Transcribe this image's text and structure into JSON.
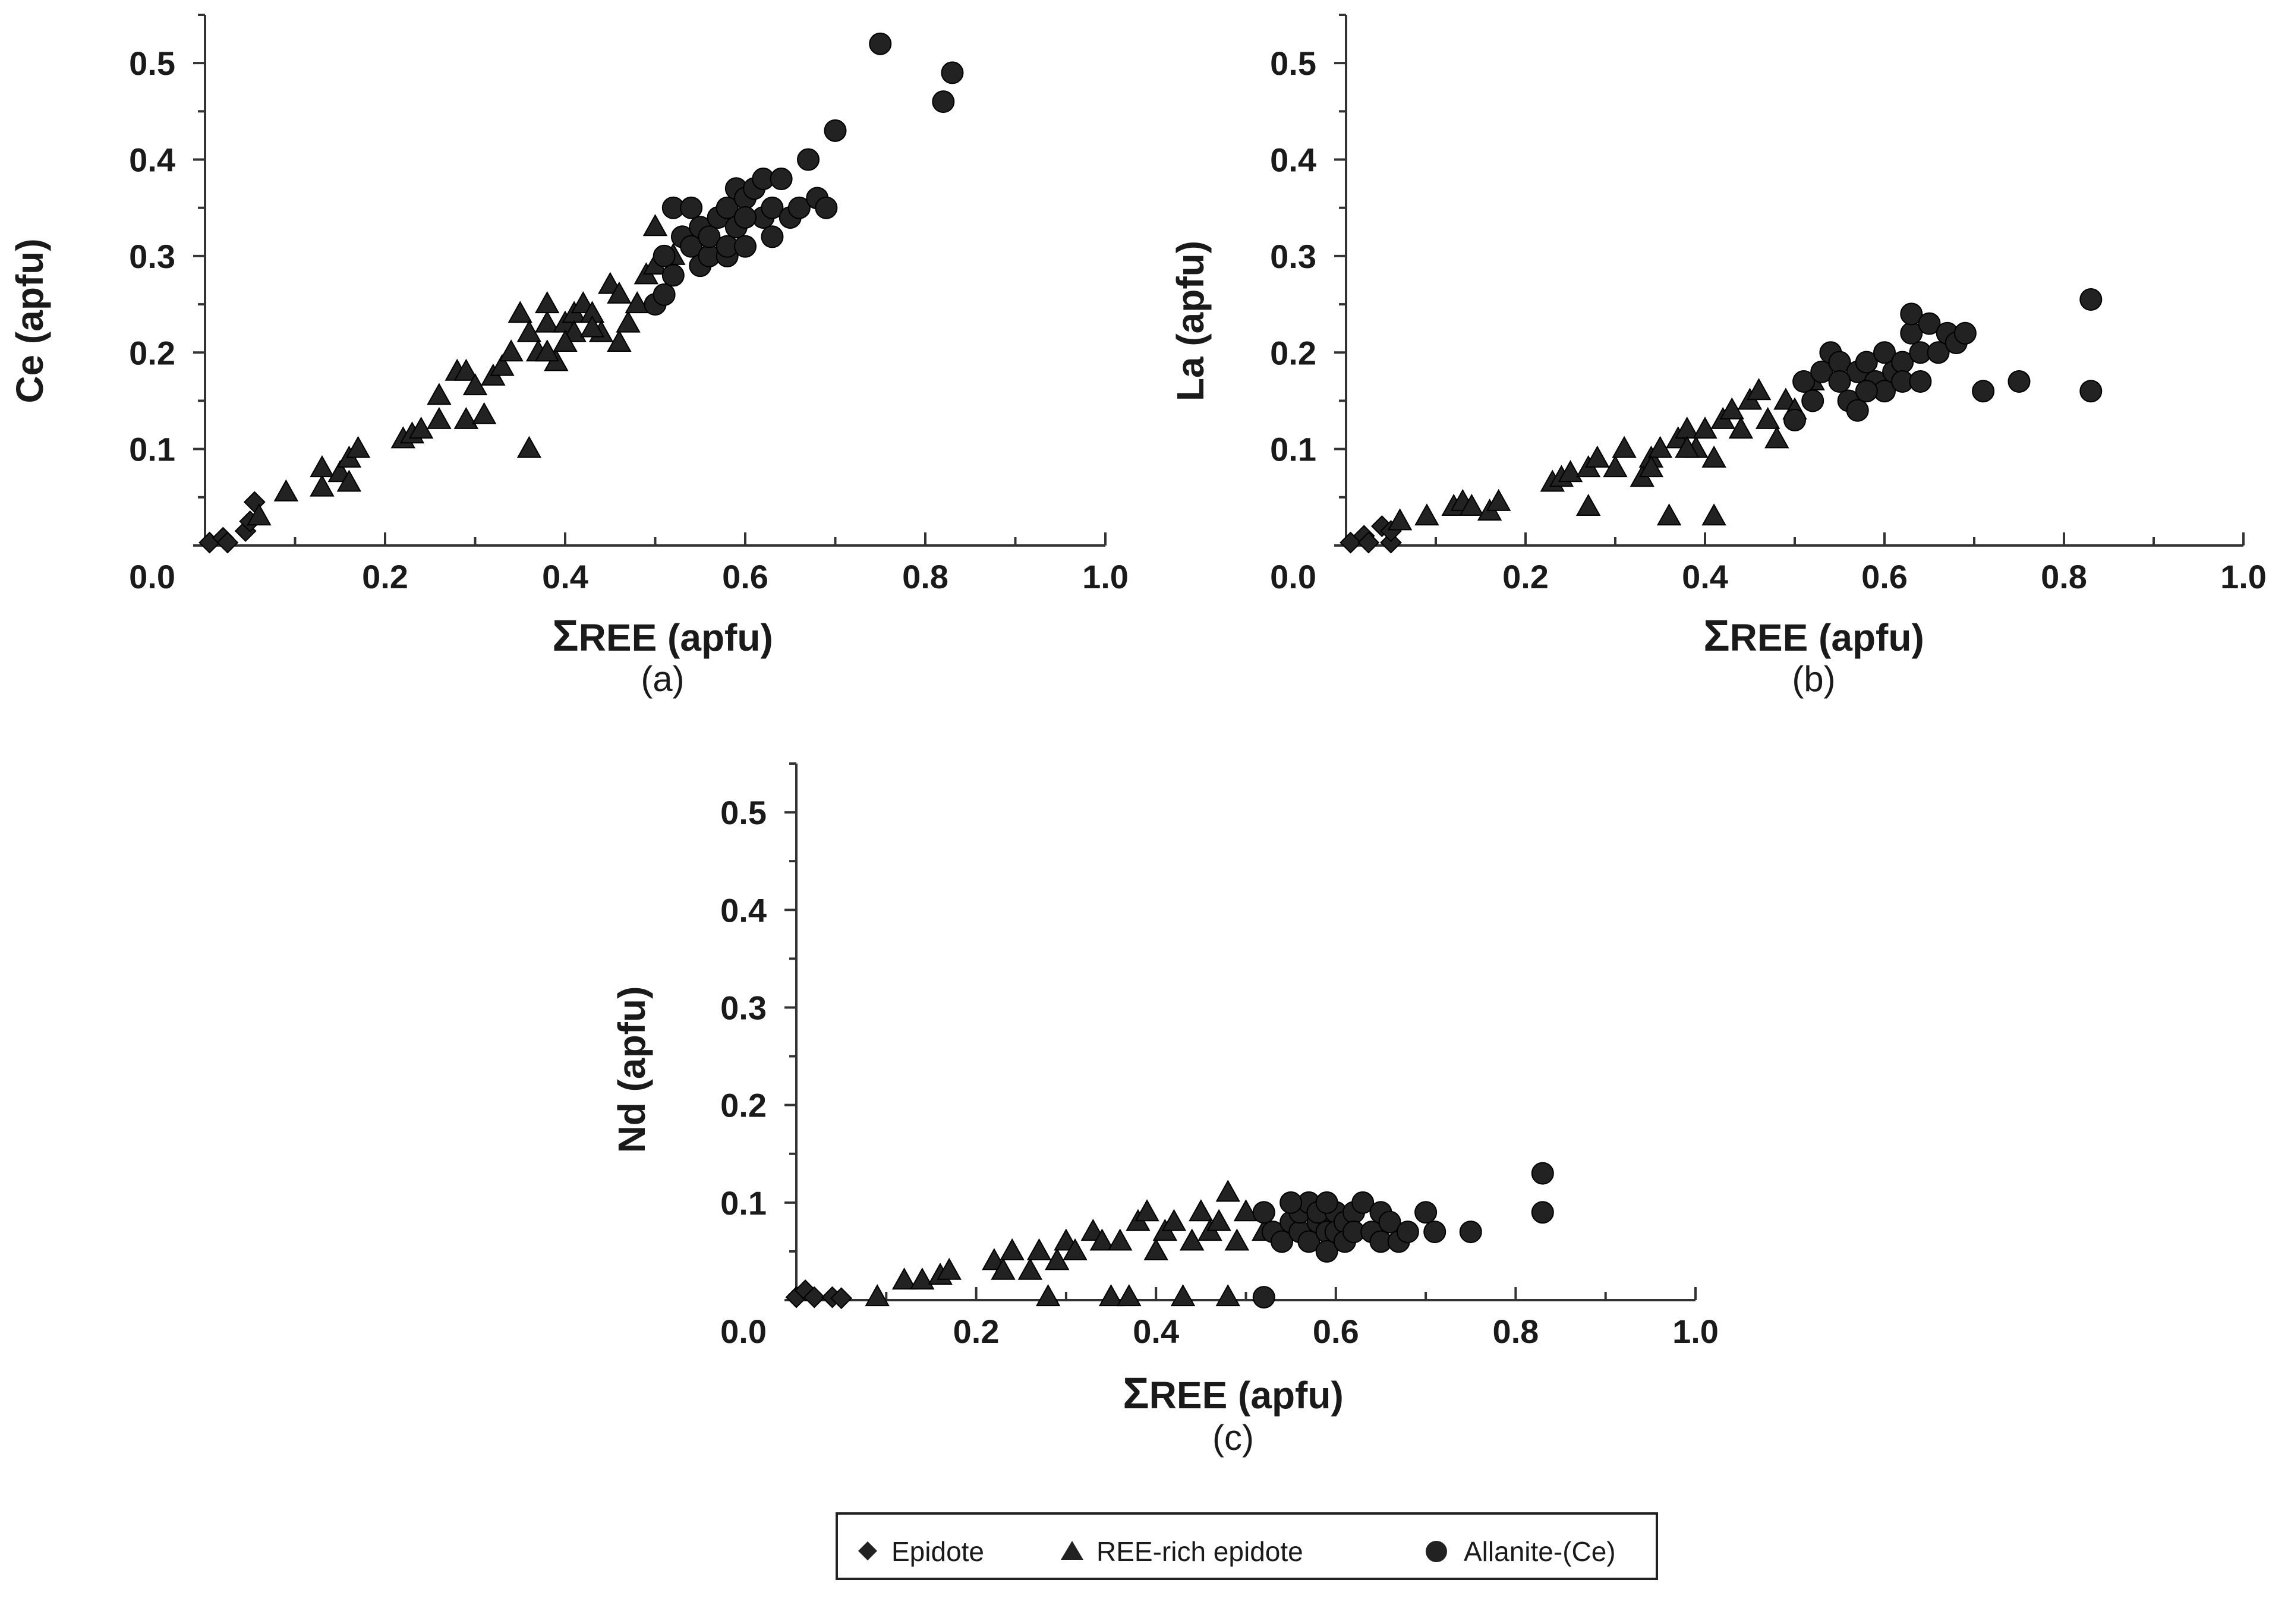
{
  "figure_legend": {
    "items": [
      {
        "label": "Epidote",
        "marker": "diamond"
      },
      {
        "label": "REE-rich epidote",
        "marker": "triangle"
      },
      {
        "label": "Allanite-(Ce)",
        "marker": "circle"
      }
    ]
  },
  "colors": {
    "marker": "#222222",
    "axis": "#333333",
    "text": "#1a1a1a"
  },
  "chart_data": [
    {
      "type": "scatter",
      "panel_label": "(a)",
      "ylabel": "Ce (apfu)",
      "xlabel_symbol": "Σ",
      "xlabel_text": "REE (apfu)",
      "xlim": [
        0,
        1.0
      ],
      "ylim": [
        0,
        0.55
      ],
      "xticks": [
        "0.0",
        "0.2",
        "0.4",
        "0.6",
        "0.8",
        "1.0"
      ],
      "yticks": [
        "0.1",
        "0.2",
        "0.3",
        "0.4",
        "0.5"
      ],
      "series": [
        {
          "name": "Epidote",
          "marker": "diamond",
          "points": [
            [
              0.005,
              0.003
            ],
            [
              0.02,
              0.008
            ],
            [
              0.025,
              0.003
            ],
            [
              0.045,
              0.015
            ],
            [
              0.05,
              0.025
            ],
            [
              0.055,
              0.045
            ]
          ]
        },
        {
          "name": "REE-rich epidote",
          "marker": "triangle",
          "points": [
            [
              0.06,
              0.03
            ],
            [
              0.09,
              0.055
            ],
            [
              0.13,
              0.06
            ],
            [
              0.13,
              0.08
            ],
            [
              0.15,
              0.075
            ],
            [
              0.16,
              0.065
            ],
            [
              0.16,
              0.09
            ],
            [
              0.17,
              0.1
            ],
            [
              0.22,
              0.11
            ],
            [
              0.23,
              0.115
            ],
            [
              0.24,
              0.12
            ],
            [
              0.26,
              0.13
            ],
            [
              0.26,
              0.155
            ],
            [
              0.28,
              0.18
            ],
            [
              0.29,
              0.18
            ],
            [
              0.29,
              0.13
            ],
            [
              0.31,
              0.135
            ],
            [
              0.3,
              0.165
            ],
            [
              0.32,
              0.175
            ],
            [
              0.33,
              0.185
            ],
            [
              0.34,
              0.2
            ],
            [
              0.35,
              0.24
            ],
            [
              0.36,
              0.22
            ],
            [
              0.36,
              0.1
            ],
            [
              0.37,
              0.2
            ],
            [
              0.38,
              0.23
            ],
            [
              0.39,
              0.19
            ],
            [
              0.38,
              0.2
            ],
            [
              0.4,
              0.23
            ],
            [
              0.41,
              0.24
            ],
            [
              0.41,
              0.22
            ],
            [
              0.42,
              0.25
            ],
            [
              0.43,
              0.24
            ],
            [
              0.44,
              0.22
            ],
            [
              0.45,
              0.27
            ],
            [
              0.46,
              0.26
            ],
            [
              0.46,
              0.21
            ],
            [
              0.47,
              0.23
            ],
            [
              0.48,
              0.25
            ],
            [
              0.49,
              0.28
            ],
            [
              0.5,
              0.29
            ],
            [
              0.5,
              0.33
            ],
            [
              0.52,
              0.3
            ],
            [
              0.38,
              0.25
            ],
            [
              0.43,
              0.225
            ],
            [
              0.4,
              0.21
            ]
          ]
        },
        {
          "name": "Allanite-(Ce)",
          "marker": "circle",
          "points": [
            [
              0.5,
              0.25
            ],
            [
              0.51,
              0.26
            ],
            [
              0.51,
              0.3
            ],
            [
              0.52,
              0.28
            ],
            [
              0.52,
              0.35
            ],
            [
              0.53,
              0.32
            ],
            [
              0.54,
              0.31
            ],
            [
              0.55,
              0.33
            ],
            [
              0.55,
              0.29
            ],
            [
              0.56,
              0.3
            ],
            [
              0.56,
              0.32
            ],
            [
              0.57,
              0.34
            ],
            [
              0.58,
              0.3
            ],
            [
              0.58,
              0.31
            ],
            [
              0.58,
              0.35
            ],
            [
              0.59,
              0.33
            ],
            [
              0.59,
              0.37
            ],
            [
              0.6,
              0.36
            ],
            [
              0.6,
              0.31
            ],
            [
              0.61,
              0.37
            ],
            [
              0.62,
              0.38
            ],
            [
              0.62,
              0.34
            ],
            [
              0.63,
              0.32
            ],
            [
              0.63,
              0.35
            ],
            [
              0.64,
              0.38
            ],
            [
              0.65,
              0.34
            ],
            [
              0.66,
              0.35
            ],
            [
              0.67,
              0.4
            ],
            [
              0.68,
              0.36
            ],
            [
              0.69,
              0.35
            ],
            [
              0.7,
              0.43
            ],
            [
              0.75,
              0.52
            ],
            [
              0.82,
              0.46
            ],
            [
              0.83,
              0.49
            ],
            [
              0.54,
              0.35
            ],
            [
              0.6,
              0.34
            ]
          ]
        }
      ]
    },
    {
      "type": "scatter",
      "panel_label": "(b)",
      "ylabel": "La (apfu)",
      "xlabel_symbol": "Σ",
      "xlabel_text": "REE (apfu)",
      "xlim": [
        0,
        1.0
      ],
      "ylim": [
        0,
        0.55
      ],
      "xticks": [
        "0.0",
        "0.2",
        "0.4",
        "0.6",
        "0.8",
        "1.0"
      ],
      "yticks": [
        "0.1",
        "0.2",
        "0.3",
        "0.4",
        "0.5"
      ],
      "series": [
        {
          "name": "Epidote",
          "marker": "diamond",
          "points": [
            [
              0.005,
              0.003
            ],
            [
              0.02,
              0.01
            ],
            [
              0.025,
              0.003
            ],
            [
              0.04,
              0.02
            ],
            [
              0.05,
              0.003
            ],
            [
              0.05,
              0.015
            ]
          ]
        },
        {
          "name": "REE-rich epidote",
          "marker": "triangle",
          "points": [
            [
              0.06,
              0.025
            ],
            [
              0.09,
              0.03
            ],
            [
              0.12,
              0.04
            ],
            [
              0.13,
              0.045
            ],
            [
              0.14,
              0.04
            ],
            [
              0.16,
              0.035
            ],
            [
              0.17,
              0.045
            ],
            [
              0.23,
              0.065
            ],
            [
              0.24,
              0.07
            ],
            [
              0.25,
              0.075
            ],
            [
              0.27,
              0.08
            ],
            [
              0.27,
              0.04
            ],
            [
              0.28,
              0.09
            ],
            [
              0.3,
              0.08
            ],
            [
              0.31,
              0.1
            ],
            [
              0.33,
              0.07
            ],
            [
              0.34,
              0.09
            ],
            [
              0.35,
              0.1
            ],
            [
              0.36,
              0.03
            ],
            [
              0.37,
              0.11
            ],
            [
              0.38,
              0.12
            ],
            [
              0.39,
              0.1
            ],
            [
              0.4,
              0.12
            ],
            [
              0.41,
              0.03
            ],
            [
              0.41,
              0.09
            ],
            [
              0.42,
              0.13
            ],
            [
              0.43,
              0.14
            ],
            [
              0.44,
              0.12
            ],
            [
              0.45,
              0.15
            ],
            [
              0.46,
              0.16
            ],
            [
              0.47,
              0.13
            ],
            [
              0.48,
              0.11
            ],
            [
              0.49,
              0.15
            ],
            [
              0.5,
              0.14
            ],
            [
              0.38,
              0.1
            ],
            [
              0.34,
              0.08
            ],
            [
              0.52,
              0.17
            ]
          ]
        },
        {
          "name": "Allanite-(Ce)",
          "marker": "circle",
          "points": [
            [
              0.5,
              0.13
            ],
            [
              0.51,
              0.17
            ],
            [
              0.52,
              0.15
            ],
            [
              0.53,
              0.18
            ],
            [
              0.54,
              0.2
            ],
            [
              0.55,
              0.19
            ],
            [
              0.56,
              0.15
            ],
            [
              0.57,
              0.14
            ],
            [
              0.57,
              0.18
            ],
            [
              0.58,
              0.19
            ],
            [
              0.59,
              0.17
            ],
            [
              0.6,
              0.2
            ],
            [
              0.6,
              0.16
            ],
            [
              0.61,
              0.18
            ],
            [
              0.62,
              0.19
            ],
            [
              0.62,
              0.17
            ],
            [
              0.63,
              0.22
            ],
            [
              0.63,
              0.24
            ],
            [
              0.64,
              0.2
            ],
            [
              0.64,
              0.17
            ],
            [
              0.65,
              0.23
            ],
            [
              0.66,
              0.2
            ],
            [
              0.67,
              0.22
            ],
            [
              0.68,
              0.21
            ],
            [
              0.69,
              0.22
            ],
            [
              0.71,
              0.16
            ],
            [
              0.75,
              0.17
            ],
            [
              0.83,
              0.16
            ],
            [
              0.83,
              0.255
            ],
            [
              0.55,
              0.17
            ],
            [
              0.58,
              0.16
            ]
          ]
        }
      ]
    },
    {
      "type": "scatter",
      "panel_label": "(c)",
      "ylabel": "Nd (apfu)",
      "xlabel_symbol": "Σ",
      "xlabel_text": "REE (apfu)",
      "xlim": [
        0,
        1.0
      ],
      "ylim": [
        0,
        0.55
      ],
      "xticks": [
        "0.0",
        "0.2",
        "0.4",
        "0.6",
        "0.8",
        "1.0"
      ],
      "yticks": [
        "0.1",
        "0.2",
        "0.3",
        "0.4",
        "0.5"
      ],
      "series": [
        {
          "name": "Epidote",
          "marker": "diamond",
          "points": [
            [
              0.0,
              0.003
            ],
            [
              0.01,
              0.01
            ],
            [
              0.02,
              0.003
            ],
            [
              0.04,
              0.003
            ],
            [
              0.05,
              0.002
            ]
          ]
        },
        {
          "name": "REE-rich epidote",
          "marker": "triangle",
          "points": [
            [
              0.09,
              0.003
            ],
            [
              0.12,
              0.02
            ],
            [
              0.14,
              0.02
            ],
            [
              0.16,
              0.025
            ],
            [
              0.17,
              0.03
            ],
            [
              0.22,
              0.04
            ],
            [
              0.23,
              0.03
            ],
            [
              0.24,
              0.05
            ],
            [
              0.26,
              0.03
            ],
            [
              0.27,
              0.05
            ],
            [
              0.28,
              0.003
            ],
            [
              0.29,
              0.04
            ],
            [
              0.3,
              0.06
            ],
            [
              0.31,
              0.05
            ],
            [
              0.33,
              0.07
            ],
            [
              0.34,
              0.06
            ],
            [
              0.35,
              0.003
            ],
            [
              0.36,
              0.06
            ],
            [
              0.37,
              0.003
            ],
            [
              0.38,
              0.08
            ],
            [
              0.39,
              0.09
            ],
            [
              0.4,
              0.05
            ],
            [
              0.41,
              0.07
            ],
            [
              0.42,
              0.08
            ],
            [
              0.43,
              0.003
            ],
            [
              0.44,
              0.06
            ],
            [
              0.45,
              0.09
            ],
            [
              0.46,
              0.07
            ],
            [
              0.47,
              0.08
            ],
            [
              0.48,
              0.11
            ],
            [
              0.49,
              0.06
            ],
            [
              0.5,
              0.09
            ],
            [
              0.48,
              0.003
            ],
            [
              0.52,
              0.07
            ]
          ]
        },
        {
          "name": "Allanite-(Ce)",
          "marker": "circle",
          "points": [
            [
              0.52,
              0.003
            ],
            [
              0.52,
              0.09
            ],
            [
              0.53,
              0.07
            ],
            [
              0.54,
              0.06
            ],
            [
              0.55,
              0.08
            ],
            [
              0.56,
              0.07
            ],
            [
              0.56,
              0.09
            ],
            [
              0.57,
              0.1
            ],
            [
              0.57,
              0.06
            ],
            [
              0.58,
              0.08
            ],
            [
              0.58,
              0.09
            ],
            [
              0.59,
              0.07
            ],
            [
              0.59,
              0.05
            ],
            [
              0.6,
              0.09
            ],
            [
              0.6,
              0.07
            ],
            [
              0.61,
              0.08
            ],
            [
              0.61,
              0.06
            ],
            [
              0.62,
              0.09
            ],
            [
              0.62,
              0.07
            ],
            [
              0.63,
              0.1
            ],
            [
              0.64,
              0.07
            ],
            [
              0.65,
              0.06
            ],
            [
              0.65,
              0.09
            ],
            [
              0.66,
              0.08
            ],
            [
              0.67,
              0.06
            ],
            [
              0.68,
              0.07
            ],
            [
              0.7,
              0.09
            ],
            [
              0.71,
              0.07
            ],
            [
              0.75,
              0.07
            ],
            [
              0.83,
              0.13
            ],
            [
              0.83,
              0.09
            ],
            [
              0.55,
              0.1
            ],
            [
              0.59,
              0.1
            ]
          ]
        }
      ]
    }
  ]
}
